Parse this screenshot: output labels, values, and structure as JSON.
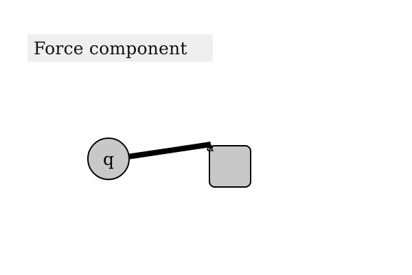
{
  "title": "Force component",
  "diagram": {
    "charge_label": "q",
    "block_label": "a"
  },
  "colors": {
    "title_bg": "#efefef",
    "node_fill": "#c8c8c8",
    "stroke": "#000000"
  }
}
